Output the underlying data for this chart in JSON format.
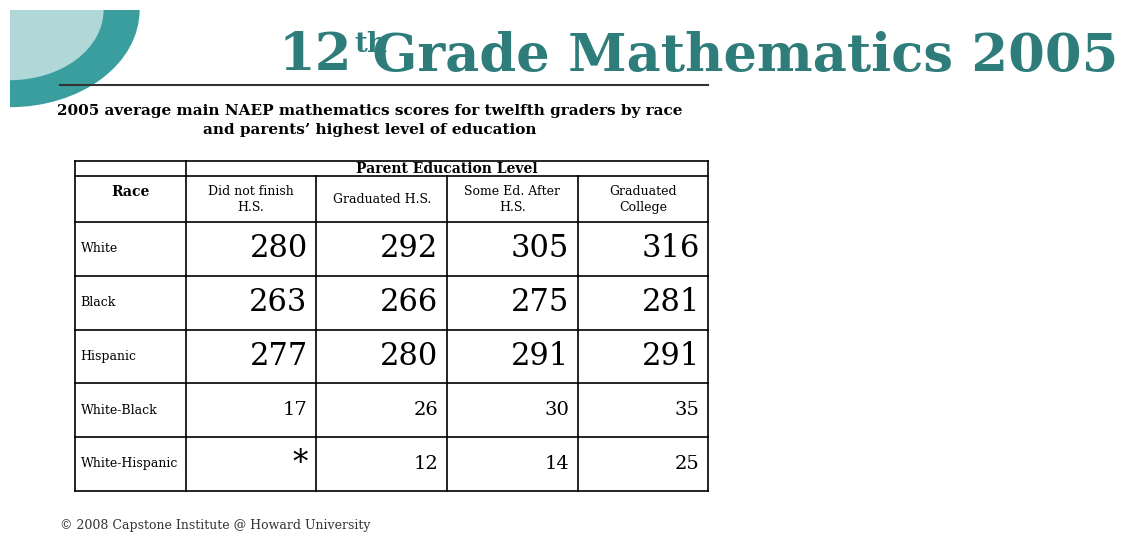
{
  "title_main": "12",
  "title_super": "th",
  "title_rest": " Grade Mathematics 2005",
  "subtitle": "2005 average main NAEP mathematics scores for twelfth graders by race\nand parents’ highest level of education",
  "footer": "© 2008 Capstone Institute @ Howard University",
  "col_header_main": "Parent Education Level",
  "col_headers": [
    "Did not finish\nH.S.",
    "Graduated H.S.",
    "Some Ed. After\nH.S.",
    "Graduated\nCollege"
  ],
  "row_header": "Race",
  "rows": [
    {
      "label": "White",
      "values": [
        "280",
        "292",
        "305",
        "316"
      ]
    },
    {
      "label": "Black",
      "values": [
        "263",
        "266",
        "275",
        "281"
      ]
    },
    {
      "label": "Hispanic",
      "values": [
        "277",
        "280",
        "291",
        "291"
      ]
    },
    {
      "label": "White-Black",
      "values": [
        "17",
        "26",
        "30",
        "35"
      ]
    },
    {
      "label": "White-Hispanic",
      "values": [
        "*",
        "12",
        "14",
        "25"
      ]
    }
  ],
  "title_color": "#2e7d7a",
  "subtitle_color": "#000000",
  "bg_color": "#ffffff",
  "table_border_color": "#000000",
  "small_data_fontsize": 14,
  "large_data_fontsize": 22,
  "circle_color_outer": "#3a9e9e",
  "circle_color_inner": "#b0d8d8"
}
